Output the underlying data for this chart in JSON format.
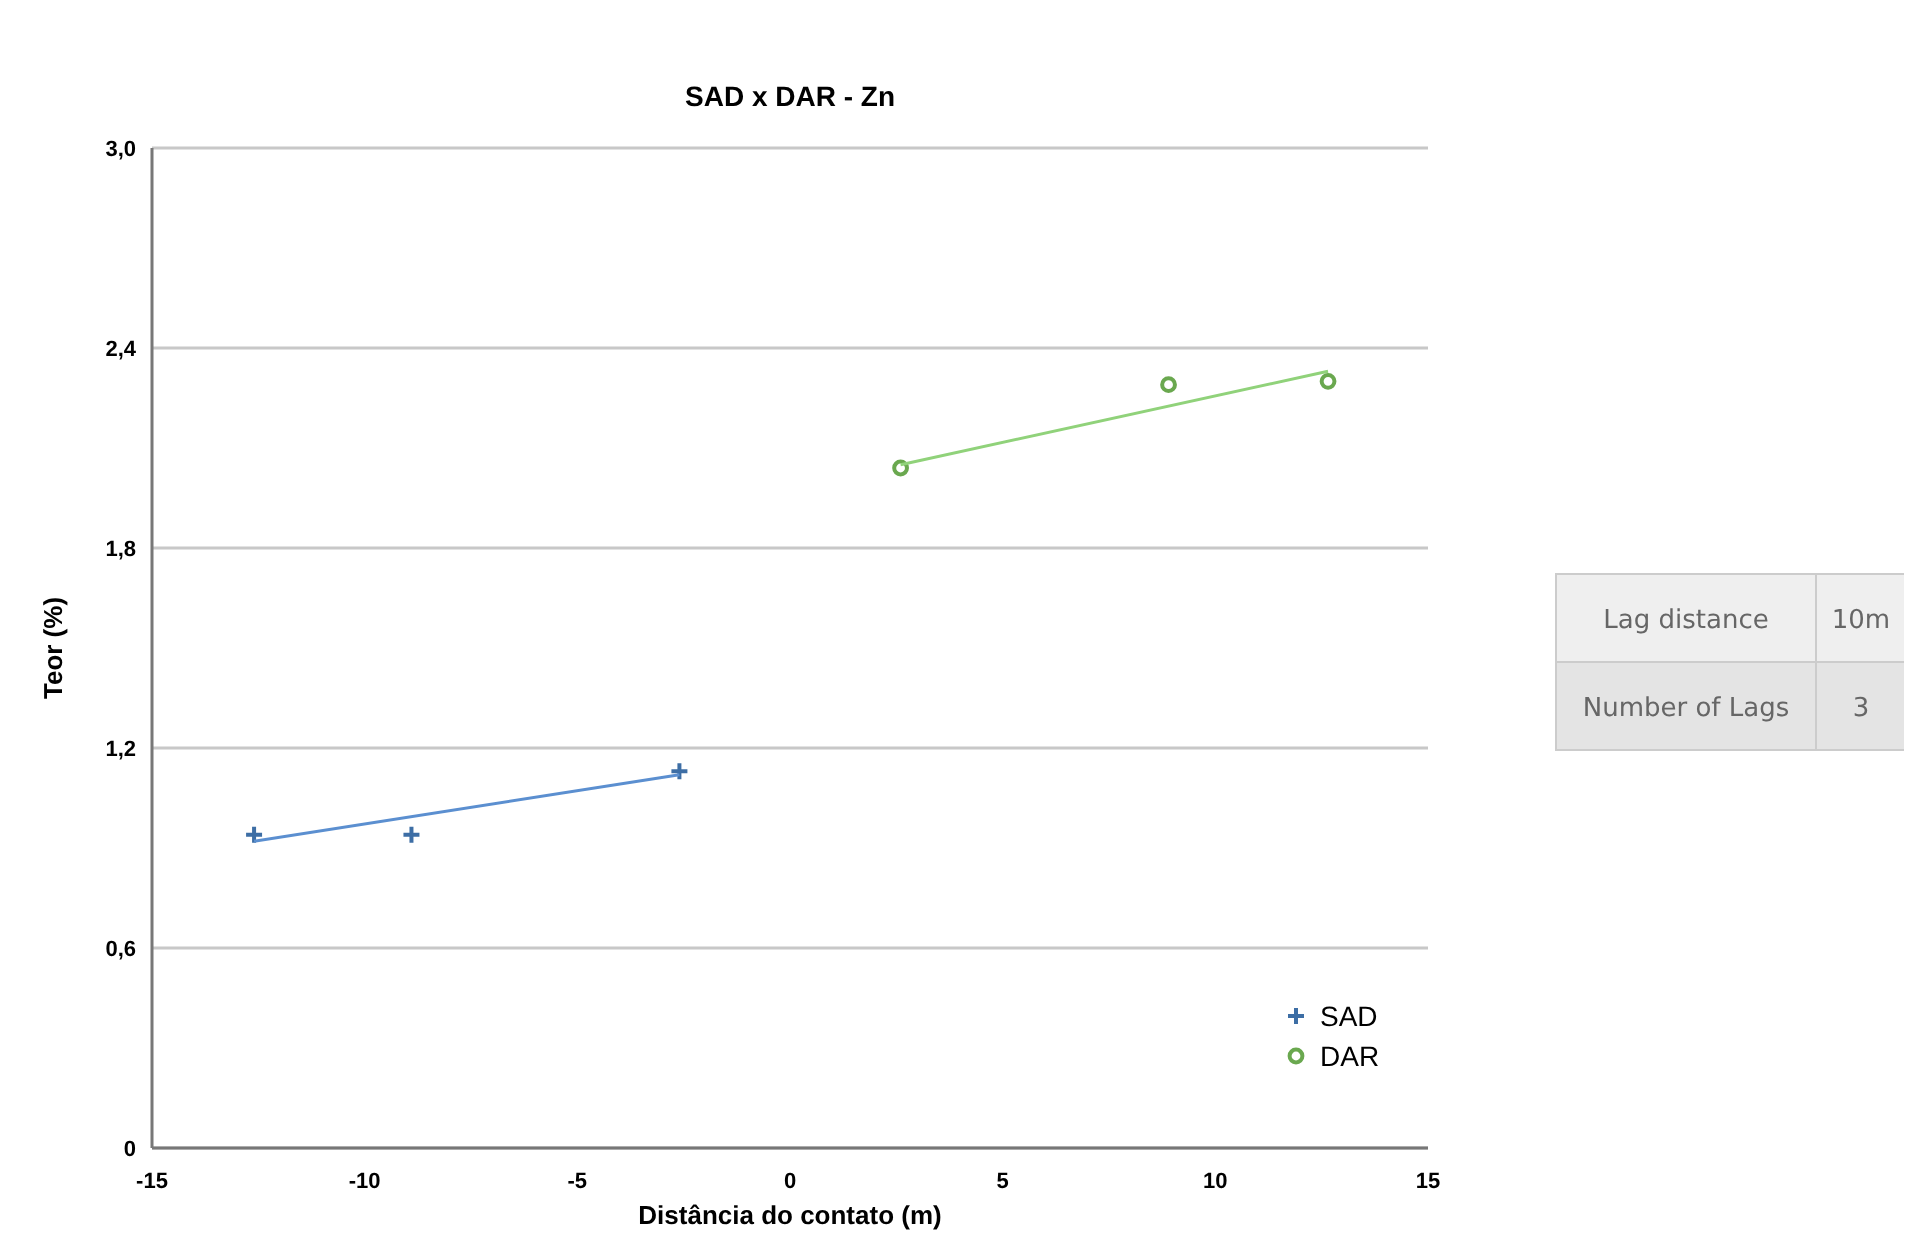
{
  "chart_data": [
    {
      "type": "scatter",
      "title": "SAD x DAR - Zn",
      "xlabel": "Distância do contato (m)",
      "ylabel": "Teor (%)",
      "xlim": [
        -15,
        15
      ],
      "xticks": [
        -15,
        -10,
        -5,
        0,
        5,
        10,
        15
      ],
      "ylim": [
        0,
        3
      ],
      "yticks": [
        0,
        {
          "value": 0.6,
          "label": "0,6"
        },
        {
          "value": 1.2,
          "label": "1,2"
        },
        {
          "value": 1.8,
          "label": "1,8"
        },
        {
          "value": 2.4,
          "label": "2,4"
        },
        {
          "value": 3,
          "label": "3,0"
        }
      ],
      "grid": "y",
      "legend": "bottom right",
      "series": [
        {
          "name": "SAD",
          "color": "#3d6ea5",
          "marker": "cross",
          "x": [
            -12.6,
            -8.9,
            -2.6
          ],
          "values": [
            0.94,
            0.94,
            1.13
          ]
        },
        {
          "name": "DAR",
          "color": "#6aa84f",
          "marker": "circle",
          "x": [
            2.6,
            8.9,
            12.65
          ],
          "values": [
            2.04,
            2.29,
            2.3
          ]
        },
        {
          "type": "line",
          "color": "#5b8fd0",
          "x": [
            -12.6,
            -2.6
          ],
          "values": [
            0.92,
            1.12
          ]
        },
        {
          "type": "line",
          "color": "#90d27a",
          "x": [
            2.6,
            12.65
          ],
          "values": [
            2.05,
            2.33
          ]
        }
      ]
    },
    {
      "type": "other",
      "annotations": [
        "Lag distance",
        "10m",
        "Number of Lags",
        "3"
      ]
    }
  ]
}
